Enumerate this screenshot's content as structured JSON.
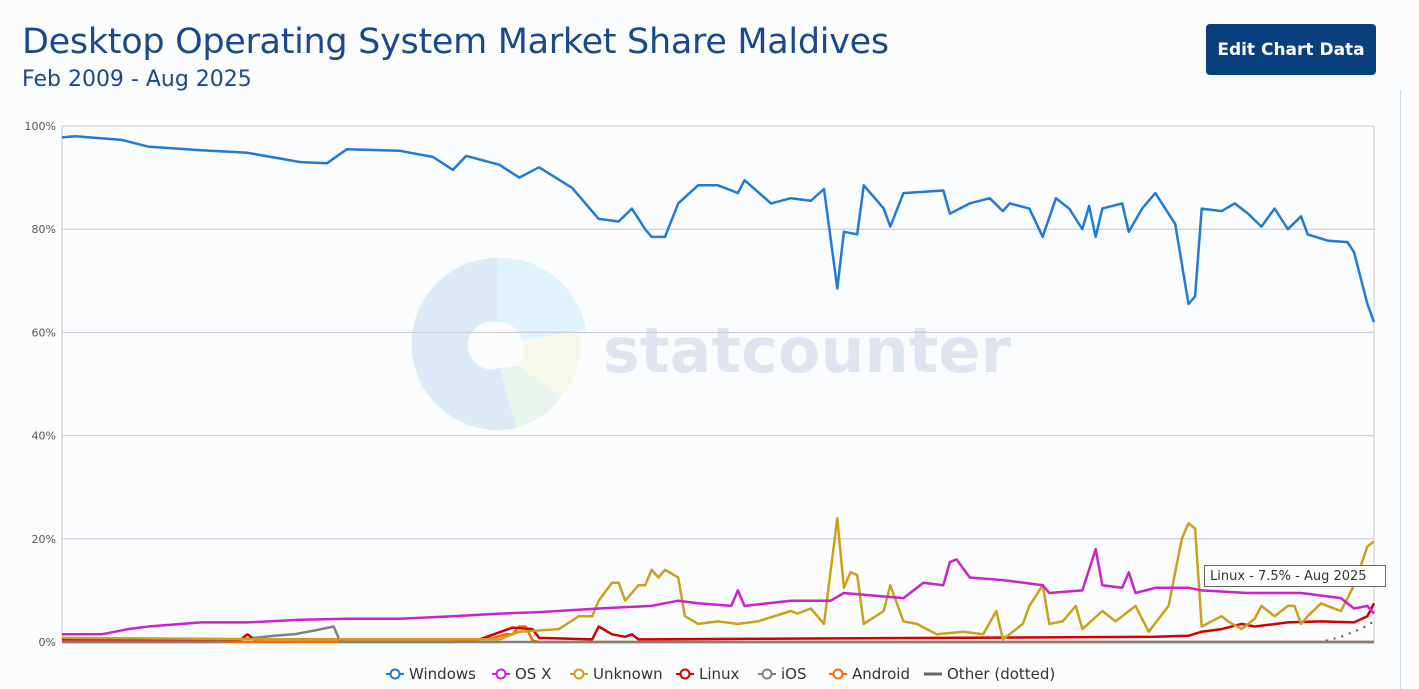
{
  "header": {
    "title": "Desktop Operating System Market Share Maldives",
    "subtitle": "Feb 2009 - Aug 2025",
    "edit_button": "Edit Chart Data"
  },
  "tooltip": "Linux - 7.5% - Aug 2025",
  "watermark": "statcounter",
  "chart_data": {
    "type": "line",
    "title": "Desktop Operating System Market Share Maldives",
    "x_unit": "months since Feb 2009 (0 = Feb 2009, 198 = Aug 2025)",
    "x_range": [
      0,
      198
    ],
    "ylim": [
      0,
      100
    ],
    "yticks": [
      "0%",
      "20%",
      "40%",
      "60%",
      "80%",
      "100%"
    ],
    "ytick_values": [
      0,
      20,
      40,
      60,
      80,
      100
    ],
    "grid": true,
    "legend_position": "bottom",
    "series": [
      {
        "name": "Windows",
        "color": "#1f7bd4",
        "points": [
          [
            0,
            97.8
          ],
          [
            2,
            98
          ],
          [
            9,
            97.3
          ],
          [
            13,
            96
          ],
          [
            21,
            95.3
          ],
          [
            28,
            94.8
          ],
          [
            36,
            93
          ],
          [
            40,
            92.8
          ],
          [
            43,
            95.5
          ],
          [
            51,
            95.2
          ],
          [
            56,
            94
          ],
          [
            59,
            91.5
          ],
          [
            61,
            94.2
          ],
          [
            66,
            92.5
          ],
          [
            69,
            90
          ],
          [
            72,
            92
          ],
          [
            77,
            88
          ],
          [
            81,
            82
          ],
          [
            84,
            81.5
          ],
          [
            86,
            84
          ],
          [
            88,
            80
          ],
          [
            89,
            78.5
          ],
          [
            91,
            78.5
          ],
          [
            93,
            85
          ],
          [
            96,
            88.5
          ],
          [
            99,
            88.5
          ],
          [
            102,
            87
          ],
          [
            103,
            89.5
          ],
          [
            107,
            85
          ],
          [
            110,
            86
          ],
          [
            113,
            85.5
          ],
          [
            115,
            87.8
          ],
          [
            117,
            68.5
          ],
          [
            118,
            79.5
          ],
          [
            120,
            79
          ],
          [
            121,
            88.5
          ],
          [
            124,
            84
          ],
          [
            125,
            80.5
          ],
          [
            127,
            87
          ],
          [
            133,
            87.5
          ],
          [
            134,
            83
          ],
          [
            137,
            85
          ],
          [
            140,
            86
          ],
          [
            142,
            83.5
          ],
          [
            143,
            85
          ],
          [
            146,
            84
          ],
          [
            148,
            78.5
          ],
          [
            150,
            86
          ],
          [
            152,
            84
          ],
          [
            154,
            80
          ],
          [
            155,
            84.5
          ],
          [
            156,
            78.5
          ],
          [
            157,
            84
          ],
          [
            160,
            85
          ],
          [
            161,
            79.5
          ],
          [
            163,
            84
          ],
          [
            165,
            87
          ],
          [
            168,
            81
          ],
          [
            170,
            65.5
          ],
          [
            171,
            67
          ],
          [
            172,
            84
          ],
          [
            175,
            83.5
          ],
          [
            177,
            85
          ],
          [
            179,
            83
          ],
          [
            181,
            80.5
          ],
          [
            183,
            84
          ],
          [
            185,
            80
          ],
          [
            187,
            82.5
          ],
          [
            188,
            79
          ],
          [
            191,
            77.8
          ],
          [
            194,
            77.5
          ],
          [
            195,
            75.5
          ],
          [
            197,
            65.5
          ],
          [
            198,
            62
          ]
        ]
      },
      {
        "name": "OS X",
        "color": "#cc22cc",
        "points": [
          [
            0,
            1.5
          ],
          [
            6,
            1.5
          ],
          [
            10,
            2.5
          ],
          [
            13,
            3
          ],
          [
            21,
            3.8
          ],
          [
            28,
            3.8
          ],
          [
            36,
            4.3
          ],
          [
            43,
            4.5
          ],
          [
            51,
            4.5
          ],
          [
            59,
            5
          ],
          [
            66,
            5.5
          ],
          [
            72,
            5.8
          ],
          [
            81,
            6.5
          ],
          [
            89,
            7
          ],
          [
            93,
            8
          ],
          [
            96,
            7.5
          ],
          [
            101,
            7
          ],
          [
            102,
            10
          ],
          [
            103,
            7
          ],
          [
            110,
            8
          ],
          [
            116,
            8
          ],
          [
            118,
            9.5
          ],
          [
            127,
            8.5
          ],
          [
            130,
            11.5
          ],
          [
            133,
            11
          ],
          [
            134,
            15.5
          ],
          [
            135,
            16
          ],
          [
            137,
            12.5
          ],
          [
            142,
            12
          ],
          [
            148,
            11
          ],
          [
            149,
            9.5
          ],
          [
            154,
            10
          ],
          [
            156,
            18
          ],
          [
            157,
            11
          ],
          [
            160,
            10.5
          ],
          [
            161,
            13.5
          ],
          [
            162,
            9.5
          ],
          [
            165,
            10.5
          ],
          [
            170,
            10.5
          ],
          [
            172,
            10
          ],
          [
            179,
            9.5
          ],
          [
            187,
            9.5
          ],
          [
            193,
            8.5
          ],
          [
            195,
            6.5
          ],
          [
            197,
            7
          ],
          [
            198,
            5.5
          ]
        ]
      },
      {
        "name": "Unknown",
        "color": "#c9a21a",
        "points": [
          [
            0,
            0.8
          ],
          [
            36,
            0.5
          ],
          [
            66,
            0.5
          ],
          [
            69,
            2
          ],
          [
            75,
            2.5
          ],
          [
            78,
            5
          ],
          [
            80,
            5
          ],
          [
            81,
            8
          ],
          [
            83,
            11.5
          ],
          [
            84,
            11.5
          ],
          [
            85,
            8
          ],
          [
            87,
            11
          ],
          [
            88,
            11
          ],
          [
            89,
            14
          ],
          [
            90,
            12.5
          ],
          [
            91,
            14
          ],
          [
            93,
            12.5
          ],
          [
            94,
            5
          ],
          [
            96,
            3.5
          ],
          [
            99,
            4
          ],
          [
            102,
            3.5
          ],
          [
            105,
            4
          ],
          [
            110,
            6
          ],
          [
            111,
            5.5
          ],
          [
            113,
            6.5
          ],
          [
            115,
            3.5
          ],
          [
            117,
            24
          ],
          [
            118,
            10.5
          ],
          [
            119,
            13.5
          ],
          [
            120,
            13
          ],
          [
            121,
            3.5
          ],
          [
            124,
            6
          ],
          [
            125,
            11
          ],
          [
            127,
            4
          ],
          [
            129,
            3.5
          ],
          [
            132,
            1.5
          ],
          [
            136,
            2
          ],
          [
            139,
            1.5
          ],
          [
            141,
            6
          ],
          [
            142,
            0.5
          ],
          [
            145,
            3.5
          ],
          [
            146,
            7
          ],
          [
            148,
            11
          ],
          [
            149,
            3.5
          ],
          [
            151,
            4
          ],
          [
            153,
            7
          ],
          [
            154,
            2.5
          ],
          [
            157,
            6
          ],
          [
            159,
            4
          ],
          [
            162,
            7
          ],
          [
            164,
            2
          ],
          [
            167,
            7
          ],
          [
            169,
            20
          ],
          [
            170,
            23
          ],
          [
            171,
            22
          ],
          [
            172,
            3
          ],
          [
            175,
            5
          ],
          [
            176,
            4
          ],
          [
            178,
            2.5
          ],
          [
            180,
            4.5
          ],
          [
            181,
            7
          ],
          [
            183,
            5
          ],
          [
            185,
            7
          ],
          [
            186,
            7
          ],
          [
            187,
            3.5
          ],
          [
            188,
            5
          ],
          [
            190,
            7.5
          ],
          [
            191,
            7
          ],
          [
            193,
            6
          ],
          [
            195,
            11
          ],
          [
            197,
            18.5
          ],
          [
            198,
            19.5
          ]
        ]
      },
      {
        "name": "Linux",
        "color": "#d40000",
        "points": [
          [
            0,
            0.5
          ],
          [
            27,
            0.5
          ],
          [
            28,
            1.5
          ],
          [
            29,
            0.5
          ],
          [
            63,
            0.5
          ],
          [
            68,
            2.8
          ],
          [
            71,
            2.5
          ],
          [
            72,
            0.8
          ],
          [
            80,
            0.5
          ],
          [
            81,
            3
          ],
          [
            83,
            1.5
          ],
          [
            85,
            1
          ],
          [
            86,
            1.5
          ],
          [
            87,
            0.5
          ],
          [
            165,
            1
          ],
          [
            170,
            1.2
          ],
          [
            172,
            2
          ],
          [
            175,
            2.5
          ],
          [
            178,
            3.5
          ],
          [
            180,
            3
          ],
          [
            185,
            3.8
          ],
          [
            190,
            4
          ],
          [
            195,
            3.8
          ],
          [
            197,
            5
          ],
          [
            198,
            7.5
          ]
        ]
      },
      {
        "name": "iOS",
        "color": "#808080",
        "points": [
          [
            0,
            0
          ],
          [
            24,
            0
          ],
          [
            27,
            0.5
          ],
          [
            32,
            1.2
          ],
          [
            35,
            1.5
          ],
          [
            38,
            2.2
          ],
          [
            41,
            3
          ],
          [
            42,
            0
          ],
          [
            198,
            0
          ]
        ]
      },
      {
        "name": "Android",
        "color": "#ff6a00",
        "points": [
          [
            0,
            0
          ],
          [
            59,
            0
          ],
          [
            65,
            0.8
          ],
          [
            67,
            1.5
          ],
          [
            68,
            1.5
          ],
          [
            69,
            3
          ],
          [
            70,
            3
          ],
          [
            71,
            0.3
          ],
          [
            72,
            0
          ],
          [
            198,
            0
          ]
        ]
      },
      {
        "name": "Other (dotted)",
        "color": "#555555",
        "dotted": true,
        "points": [
          [
            0,
            0
          ],
          [
            190,
            0
          ],
          [
            193,
            1
          ],
          [
            196,
            2.5
          ],
          [
            198,
            4
          ]
        ]
      }
    ]
  }
}
